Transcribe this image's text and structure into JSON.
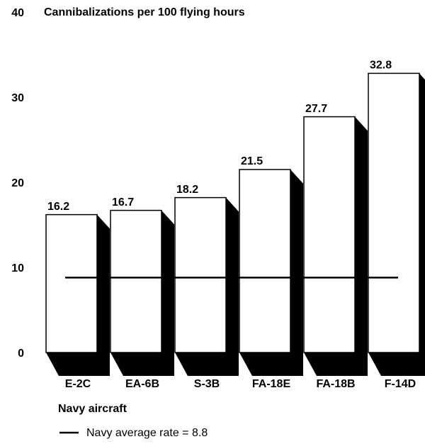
{
  "chart_data": {
    "type": "bar",
    "title": "Cannibalizations per 100 flying hours",
    "x_label": "Navy aircraft",
    "categories": [
      "E-2C",
      "EA-6B",
      "S-3B",
      "FA-18E",
      "FA-18B",
      "F-14D"
    ],
    "values": [
      16.2,
      16.7,
      18.2,
      21.5,
      27.7,
      32.8
    ],
    "color": "#ffffff",
    "ylim": [
      0,
      40
    ],
    "yticks": [
      0,
      10,
      20,
      30,
      40
    ],
    "grid": false,
    "reference_line": {
      "value": 8.8,
      "label": "Navy average rate = 8.8"
    }
  }
}
